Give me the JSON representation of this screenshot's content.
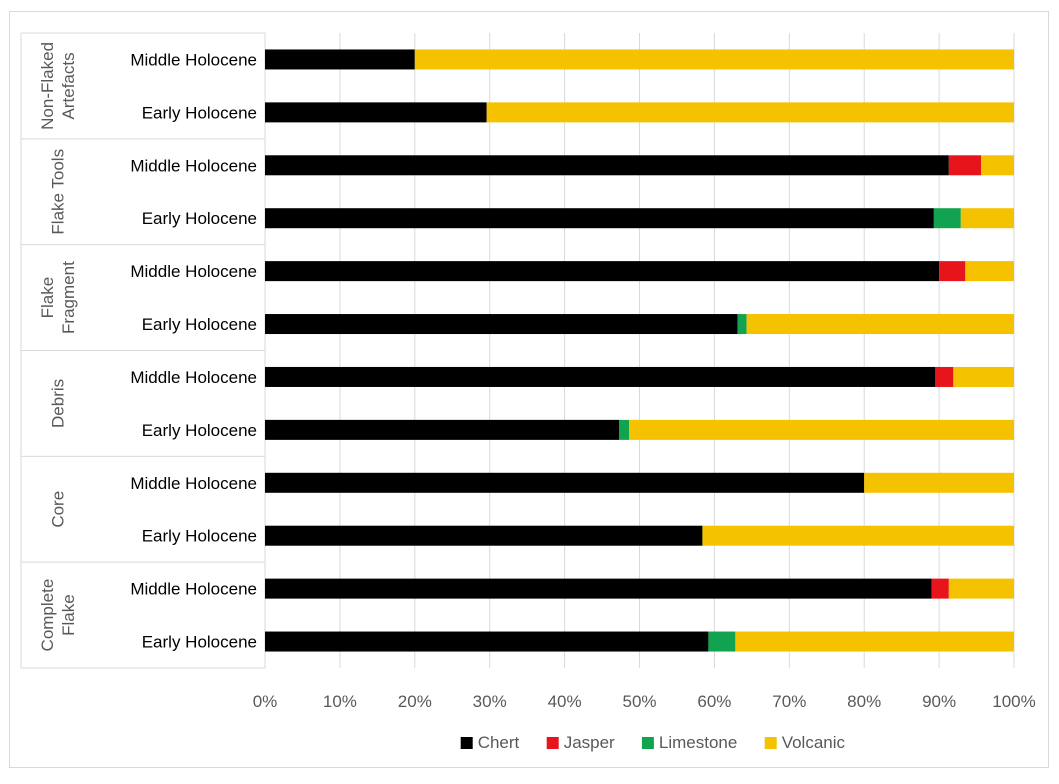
{
  "chart_data": {
    "type": "bar",
    "orientation": "horizontal",
    "stacked": true,
    "percent_axis": true,
    "xlim": [
      0,
      100
    ],
    "x_ticks": [
      "0%",
      "10%",
      "20%",
      "30%",
      "40%",
      "50%",
      "60%",
      "70%",
      "80%",
      "90%",
      "100%"
    ],
    "grid": "vertical",
    "legend_position": "bottom",
    "groups": [
      {
        "name": "Non-Flaked Artefacts",
        "label_lines": [
          "Non-Flaked",
          "Artefacts"
        ]
      },
      {
        "name": "Flake Tools",
        "label_lines": [
          "Flake Tools"
        ]
      },
      {
        "name": "Flake Fragment",
        "label_lines": [
          "Flake",
          "Fragment"
        ]
      },
      {
        "name": "Debris",
        "label_lines": [
          "Debris"
        ]
      },
      {
        "name": "Core",
        "label_lines": [
          "Core"
        ]
      },
      {
        "name": "Complete Flake",
        "label_lines": [
          "Complete",
          "Flake"
        ]
      }
    ],
    "categories": [
      "Middle Holocene",
      "Early Holocene",
      "Middle Holocene",
      "Early Holocene",
      "Middle Holocene",
      "Early Holocene",
      "Middle Holocene",
      "Early Holocene",
      "Middle Holocene",
      "Early Holocene",
      "Middle Holocene",
      "Early Holocene"
    ],
    "series": [
      {
        "name": "Chert",
        "color": "#000000",
        "values": [
          20,
          29.6,
          91.3,
          89.3,
          90,
          63.1,
          89.5,
          47.3,
          80,
          58.4,
          89,
          59.2
        ]
      },
      {
        "name": "Jasper",
        "color": "#e8141c",
        "values": [
          0,
          0,
          4.3,
          0,
          3.5,
          0,
          2.4,
          0,
          0,
          0,
          2.3,
          0
        ]
      },
      {
        "name": "Limestone",
        "color": "#12a350",
        "values": [
          0,
          0,
          0,
          3.6,
          0,
          1.2,
          0,
          1.3,
          0,
          0,
          0,
          3.6
        ]
      },
      {
        "name": "Volcanic",
        "color": "#f5c200",
        "values": [
          80,
          70.4,
          4.4,
          7.1,
          6.5,
          35.7,
          8.1,
          51.4,
          20,
          41.6,
          8.7,
          37.2
        ]
      }
    ]
  }
}
